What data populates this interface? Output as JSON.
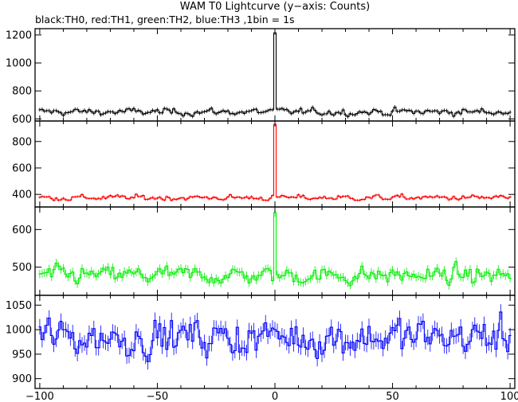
{
  "chart_data": {
    "type": "line",
    "title": "WAM T0 Lightcurve (y−axis: Counts)",
    "subtitle": "black:TH0, red:TH1, green:TH2, blue:TH3 ,1bin = 1s",
    "x_ticks": [
      -100,
      -50,
      0,
      50,
      100
    ],
    "x_tick_labels": [
      "−100",
      "−50",
      "0",
      "50",
      "100"
    ],
    "xlim": [
      -102,
      102
    ],
    "grid": false,
    "legend": "none",
    "panels": [
      {
        "name": "TH0",
        "color": "#000000",
        "ylim": [
          585,
          1245
        ],
        "y_ticks": [
          600,
          800,
          1000,
          1200
        ],
        "baseline": 650,
        "noise": 22,
        "peak": {
          "x": 0,
          "y": 1215
        },
        "error_bar": 28
      },
      {
        "name": "TH1",
        "color": "#ff0000",
        "ylim": [
          305,
          955
        ],
        "y_ticks": [
          400,
          600,
          800
        ],
        "baseline": 375,
        "noise": 18,
        "peak": {
          "x": 0,
          "y": 930
        },
        "error_bar": 20
      },
      {
        "name": "TH2",
        "color": "#00ee00",
        "ylim": [
          425,
          660
        ],
        "y_ticks": [
          500,
          600
        ],
        "baseline": 478,
        "noise": 20,
        "peak": {
          "x": 0,
          "y": 645
        },
        "error_bar": 22
      },
      {
        "name": "TH3",
        "color": "#0000ff",
        "ylim": [
          880,
          1070
        ],
        "y_ticks": [
          900,
          950,
          1000,
          1050
        ],
        "baseline": 985,
        "noise": 33,
        "peak": {
          "x": 0,
          "y": 1000
        },
        "error_bar": 32
      }
    ]
  }
}
